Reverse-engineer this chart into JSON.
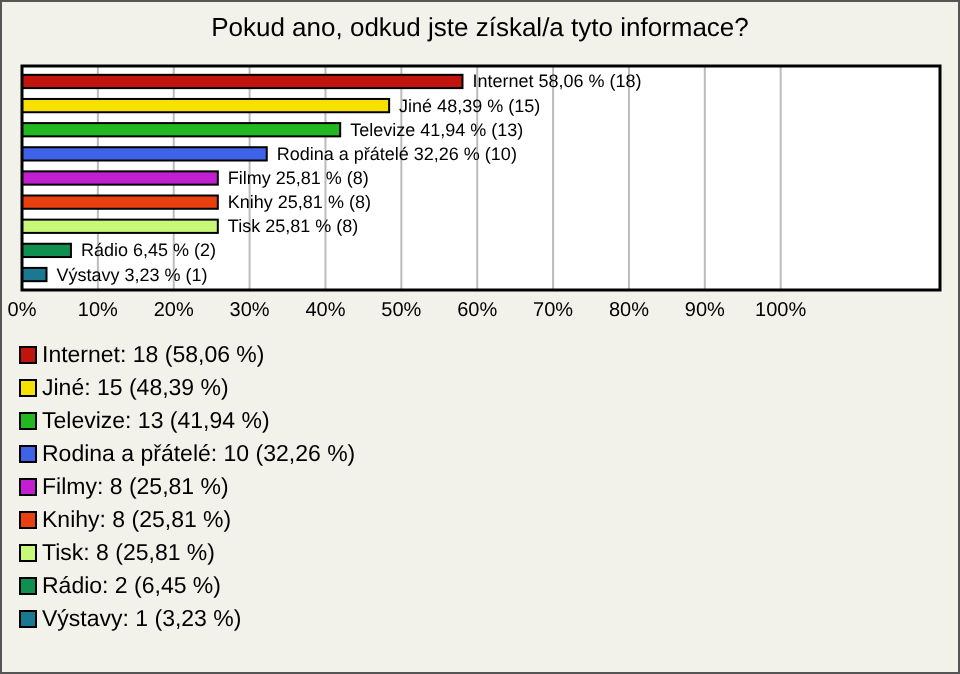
{
  "chart_data": {
    "type": "bar",
    "orientation": "horizontal",
    "title": "Pokud ano, odkud jste získal/a tyto informace?",
    "categories": [
      null,
      null,
      null,
      null,
      null,
      null,
      null,
      null,
      null
    ],
    "values": [
      58.06,
      48.39,
      41.94,
      32.26,
      25.81,
      25.81,
      25.81,
      6.45,
      3.23
    ],
    "colors": [
      "#c0140c",
      "#f5e000",
      "#22b822",
      "#3e62e8",
      "#c020d0",
      "#e84010",
      "#c8f878",
      "#109050",
      "#1a7890"
    ],
    "value_labels": [
      "Internet 58,06 % (18)",
      "Jiné 48,39 % (15)",
      "Televize 41,94 % (13)",
      "Rodina a přátelé 32,26 % (10)",
      "Filmy 25,81 % (8)",
      "Knihy 25,81 % (8)",
      "Tisk 25,81 % (8)",
      "Rádio 6,45 % (2)",
      "Výstavy 3,23 % (1)"
    ],
    "xlim": [
      0,
      121
    ],
    "xticks": [
      {
        "value": 0,
        "label": "0%"
      },
      {
        "value": 10,
        "label": "10%"
      },
      {
        "value": 20,
        "label": "20%"
      },
      {
        "value": 30,
        "label": "30%"
      },
      {
        "value": 40,
        "label": "40%"
      },
      {
        "value": 50,
        "label": "50%"
      },
      {
        "value": 60,
        "label": "60%"
      },
      {
        "value": 70,
        "label": "70%"
      },
      {
        "value": 80,
        "label": "80%"
      },
      {
        "value": 90,
        "label": "90%"
      },
      {
        "value": 100,
        "label": "100%"
      }
    ],
    "grid": "x",
    "tick_labels": "x",
    "annotations": [
      "Internet: 18 (58,06 %)",
      "Jiné: 15 (48,39 %)",
      "Televize: 13 (41,94 %)",
      "Rodina a přátelé: 10 (32,26 %)",
      "Filmy: 8 (25,81 %)",
      "Knihy: 8 (25,81 %)",
      "Tisk: 8 (25,81 %)",
      "Rádio: 2 (6,45 %)",
      "Výstavy: 1 (3,23 %)"
    ]
  }
}
